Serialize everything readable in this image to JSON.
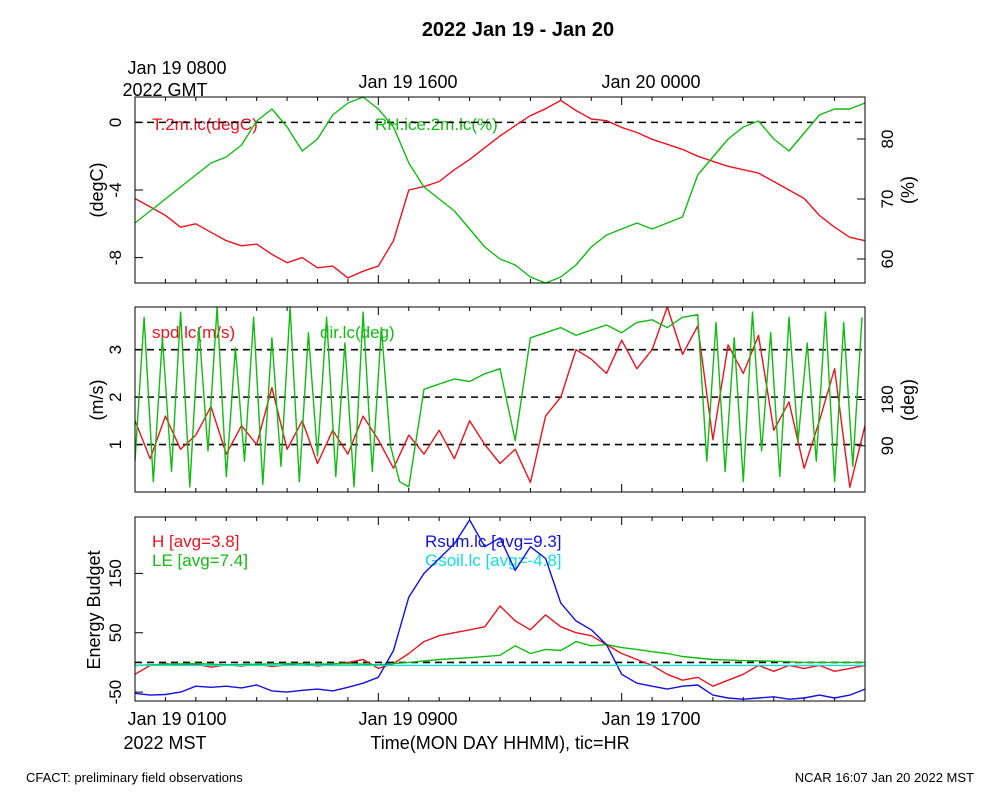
{
  "title": "2022 Jan 19 - Jan 20",
  "top_axis": {
    "start_line1": "Jan 19 0800",
    "start_line2": "2022 GMT",
    "tick_labels": [
      "Jan 19 1600",
      "Jan 20 0000"
    ]
  },
  "bottom_axis": {
    "start_line1": "Jan 19 0100",
    "start_line2": "2022 MST",
    "tick_labels": [
      "Jan 19 0900",
      "Jan 19 1700"
    ],
    "xlabel": "Time(MON DAY HHMM), tic=HR"
  },
  "footer": {
    "left": "CFACT: preliminary field observations",
    "right": "NCAR 16:07 Jan 20 2022 MST"
  },
  "colors": {
    "red": "#e8141e",
    "green": "#11bb11",
    "blue": "#1111e0",
    "cyan": "#11dddd",
    "black": "#000000"
  },
  "chart_data": [
    {
      "type": "line",
      "panel": "temperature_rh",
      "x_range_hours": [
        0,
        24
      ],
      "left_axis": {
        "label": "(degC)",
        "ylim": [
          -9.5,
          1.5
        ],
        "ticks": [
          0,
          -4,
          -8
        ],
        "tick_labels": [
          "0",
          "-4",
          "-8"
        ]
      },
      "right_axis": {
        "label": "(%)",
        "ylim": [
          56,
          87
        ],
        "ticks": [
          60,
          70,
          80
        ],
        "tick_labels": [
          "60",
          "70",
          "80"
        ]
      },
      "reference_lines_left": [
        0
      ],
      "series": [
        {
          "name": "T.2m.lc(degC)",
          "axis": "left",
          "color": "red",
          "x": [
            0,
            0.5,
            1,
            1.5,
            2,
            2.5,
            3,
            3.5,
            4,
            4.5,
            5,
            5.5,
            6,
            6.5,
            7,
            7.5,
            8,
            8.5,
            9,
            9.5,
            10,
            10.5,
            11,
            11.5,
            12,
            12.5,
            13,
            13.5,
            14,
            14.5,
            15,
            15.5,
            16,
            16.5,
            17,
            17.5,
            18,
            18.5,
            19,
            19.5,
            20,
            20.5,
            21,
            21.5,
            22,
            22.5,
            23,
            23.5,
            24
          ],
          "values": [
            -4.5,
            -5,
            -5.5,
            -6.2,
            -6,
            -6.5,
            -7,
            -7.3,
            -7.2,
            -7.8,
            -8.3,
            -8,
            -8.6,
            -8.5,
            -9.2,
            -8.8,
            -8.5,
            -7,
            -4,
            -3.8,
            -3.5,
            -2.8,
            -2.2,
            -1.5,
            -0.8,
            -0.2,
            0.4,
            0.8,
            1.3,
            0.7,
            0.2,
            0.1,
            -0.3,
            -0.6,
            -1,
            -1.3,
            -1.6,
            -2,
            -2.3,
            -2.6,
            -2.8,
            -3,
            -3.5,
            -4,
            -4.5,
            -5.5,
            -6.2,
            -6.8,
            -7
          ]
        },
        {
          "name": "RH.ice.2m.lc(%)",
          "axis": "right",
          "color": "green",
          "x": [
            0,
            0.5,
            1,
            1.5,
            2,
            2.5,
            3,
            3.5,
            4,
            4.5,
            5,
            5.5,
            6,
            6.5,
            7,
            7.5,
            8,
            8.5,
            9,
            9.5,
            10,
            10.5,
            11,
            11.5,
            12,
            12.5,
            13,
            13.5,
            14,
            14.5,
            15,
            15.5,
            16,
            16.5,
            17,
            17.5,
            18,
            18.5,
            19,
            19.5,
            20,
            20.5,
            21,
            21.5,
            22,
            22.5,
            23,
            23.5,
            24
          ],
          "values": [
            66,
            68,
            70,
            72,
            74,
            76,
            77,
            79,
            83,
            85,
            82,
            78,
            80,
            84,
            86,
            87,
            85,
            82,
            76,
            72,
            70,
            68,
            65,
            62,
            60,
            59,
            57,
            56,
            57,
            59,
            62,
            64,
            65,
            66,
            65,
            66,
            67,
            74,
            77,
            80,
            82,
            83,
            80,
            78,
            81,
            84,
            85,
            85,
            86
          ]
        }
      ]
    },
    {
      "type": "line",
      "panel": "wind",
      "x_range_hours": [
        0,
        24
      ],
      "left_axis": {
        "label": "(m/s)",
        "ylim": [
          0,
          3.9
        ],
        "ticks": [
          1,
          2,
          3
        ],
        "tick_labels": [
          "1",
          "2",
          "3"
        ]
      },
      "right_axis": {
        "label": "(deg)",
        "ylim": [
          0,
          360
        ],
        "ticks": [
          90,
          180
        ],
        "tick_labels": [
          "90",
          "180"
        ]
      },
      "reference_lines_left": [
        1,
        2,
        3
      ],
      "series": [
        {
          "name": "spd.lc(m/s)",
          "axis": "left",
          "color": "red",
          "x": [
            0,
            0.5,
            1,
            1.5,
            2,
            2.5,
            3,
            3.5,
            4,
            4.5,
            5,
            5.5,
            6,
            6.5,
            7,
            7.5,
            8,
            8.5,
            9,
            9.5,
            10,
            10.5,
            11,
            11.5,
            12,
            12.5,
            13,
            13.5,
            14,
            14.5,
            15,
            15.5,
            16,
            16.5,
            17,
            17.5,
            18,
            18.5,
            19,
            19.5,
            20,
            20.5,
            21,
            21.5,
            22,
            22.5,
            23,
            23.5,
            24
          ],
          "values": [
            1.5,
            0.7,
            1.6,
            0.9,
            1.2,
            1.8,
            0.8,
            1.4,
            1,
            2.2,
            0.9,
            1.5,
            0.6,
            1.3,
            0.8,
            1.6,
            1.1,
            0.5,
            1.2,
            0.8,
            1.3,
            0.7,
            1.5,
            1,
            0.6,
            0.9,
            0.2,
            1.6,
            2,
            3,
            2.8,
            2.5,
            3.2,
            2.6,
            3,
            3.9,
            2.9,
            3.5,
            1.1,
            3.1,
            2.5,
            3.3,
            1.3,
            1.9,
            0.5,
            1.5,
            2.6,
            0.1,
            1.4
          ]
        },
        {
          "name": "dir.lc(deg)",
          "axis": "right",
          "color": "green",
          "x": [
            0,
            0.3,
            0.6,
            0.9,
            1.2,
            1.5,
            1.8,
            2.1,
            2.4,
            2.7,
            3,
            3.3,
            3.6,
            3.9,
            4.2,
            4.5,
            4.8,
            5.1,
            5.4,
            5.7,
            6,
            6.3,
            6.6,
            6.9,
            7.2,
            7.5,
            7.8,
            8.1,
            8.4,
            8.7,
            9,
            9.5,
            10,
            10.5,
            11,
            11.5,
            12,
            12.5,
            13,
            13.5,
            14,
            14.5,
            15,
            15.5,
            16,
            16.5,
            17,
            17.5,
            18,
            18.5,
            18.8,
            19.1,
            19.4,
            19.7,
            20,
            20.3,
            20.6,
            20.9,
            21.2,
            21.5,
            21.8,
            22.1,
            22.4,
            22.7,
            23,
            23.3,
            23.6,
            23.9
          ],
          "values": [
            60,
            340,
            20,
            300,
            40,
            350,
            10,
            320,
            80,
            360,
            30,
            280,
            60,
            340,
            15,
            300,
            50,
            360,
            20,
            310,
            70,
            340,
            30,
            290,
            10,
            350,
            40,
            320,
            90,
            20,
            10,
            200,
            210,
            220,
            215,
            230,
            240,
            100,
            300,
            310,
            320,
            305,
            315,
            325,
            310,
            330,
            335,
            320,
            340,
            345,
            60,
            330,
            40,
            300,
            20,
            350,
            80,
            310,
            30,
            340,
            100,
            290,
            60,
            350,
            20,
            330,
            50,
            340
          ]
        }
      ]
    },
    {
      "type": "line",
      "panel": "energy_budget",
      "x_range_hours": [
        0,
        24
      ],
      "left_axis": {
        "label": "Energy Budget",
        "ylim": [
          -65,
          245
        ],
        "ticks": [
          -50,
          50,
          150
        ],
        "tick_labels": [
          "-50",
          "50",
          "150"
        ]
      },
      "reference_lines_left": [
        0
      ],
      "series": [
        {
          "name": "H",
          "label": "H [avg=3.8]",
          "color": "red",
          "x": [
            0,
            0.5,
            1,
            1.5,
            2,
            2.5,
            3,
            3.5,
            4,
            4.5,
            5,
            5.5,
            6,
            6.5,
            7,
            7.5,
            8,
            8.5,
            9,
            9.5,
            10,
            10.5,
            11,
            11.5,
            12,
            12.5,
            13,
            13.5,
            14,
            14.5,
            15,
            15.5,
            16,
            16.5,
            17,
            17.5,
            18,
            18.5,
            19,
            19.5,
            20,
            20.5,
            21,
            21.5,
            22,
            22.5,
            23,
            23.5,
            24
          ],
          "values": [
            -20,
            -5,
            -2,
            -5,
            -3,
            -8,
            -4,
            -6,
            -3,
            -7,
            -4,
            -2,
            -6,
            -3,
            0,
            5,
            -10,
            -2,
            15,
            35,
            45,
            50,
            55,
            60,
            95,
            70,
            55,
            80,
            60,
            50,
            45,
            30,
            15,
            5,
            -5,
            -20,
            -30,
            -25,
            -40,
            -30,
            -20,
            -5,
            -15,
            -5,
            -10,
            -5,
            -15,
            -10,
            -5
          ]
        },
        {
          "name": "LE",
          "label": "LE [avg=7.4]",
          "color": "green",
          "x": [
            0,
            1,
            2,
            3,
            4,
            5,
            6,
            7,
            8,
            9,
            10,
            11,
            12,
            12.5,
            13,
            13.5,
            14,
            14.5,
            15,
            15.5,
            16,
            16.5,
            17,
            17.5,
            18,
            19,
            20,
            21,
            22,
            23,
            24
          ],
          "values": [
            -5,
            -3,
            -2,
            -4,
            -3,
            -2,
            -3,
            -2,
            -4,
            0,
            5,
            8,
            12,
            28,
            15,
            22,
            20,
            35,
            28,
            30,
            25,
            22,
            18,
            15,
            10,
            5,
            3,
            2,
            0,
            0,
            0
          ]
        },
        {
          "name": "Rsum",
          "label": "Rsum.lc [avg=9.3]",
          "color": "blue",
          "x": [
            0,
            0.5,
            1,
            1.5,
            2,
            2.5,
            3,
            3.5,
            4,
            4.5,
            5,
            5.5,
            6,
            6.5,
            7,
            7.5,
            8,
            8.5,
            9,
            9.5,
            10,
            10.5,
            11,
            11.5,
            12,
            12.5,
            13,
            13.5,
            14,
            14.5,
            15,
            15.5,
            16,
            16.5,
            17,
            17.5,
            18,
            18.5,
            19,
            19.5,
            20,
            20.5,
            21,
            21.5,
            22,
            22.5,
            23,
            23.5,
            24
          ],
          "values": [
            -52,
            -55,
            -54,
            -50,
            -40,
            -42,
            -40,
            -43,
            -38,
            -48,
            -50,
            -47,
            -45,
            -48,
            -42,
            -35,
            -25,
            20,
            110,
            150,
            175,
            200,
            240,
            195,
            210,
            155,
            195,
            175,
            100,
            70,
            55,
            30,
            -20,
            -35,
            -40,
            -45,
            -40,
            -38,
            -55,
            -60,
            -62,
            -60,
            -58,
            -62,
            -60,
            -55,
            -60,
            -55,
            -45
          ]
        },
        {
          "name": "Gsoil",
          "label": "Gsoil.lc [avg=-4.8]",
          "color": "cyan",
          "x": [
            0,
            24
          ],
          "values": [
            -5,
            -5
          ]
        }
      ]
    }
  ]
}
